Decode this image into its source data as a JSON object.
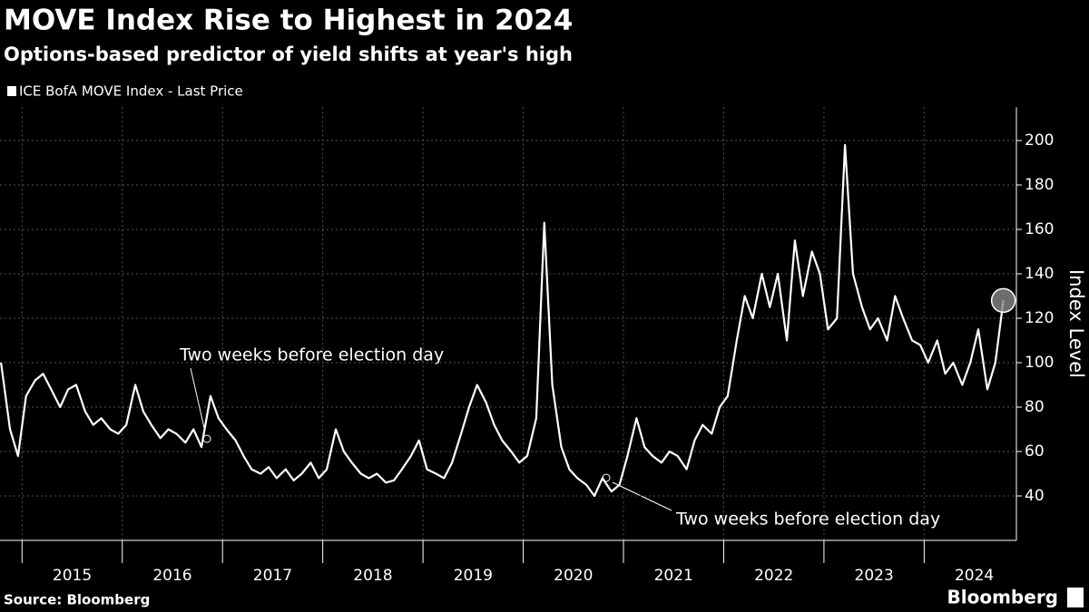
{
  "chart_data": {
    "type": "line",
    "title": "MOVE Index Rise to Highest in 2024",
    "subtitle": "Options-based predictor of yield shifts at year's high",
    "y_axis_label": "Index Level",
    "source": "Source: Bloomberg",
    "brand": "Bloomberg",
    "annotations": [
      {
        "text": "Two weeks before election day"
      },
      {
        "text": "Two weeks before election day"
      }
    ],
    "x": [
      2014.79,
      2014.88,
      2014.96,
      2015.04,
      2015.13,
      2015.21,
      2015.29,
      2015.38,
      2015.46,
      2015.54,
      2015.63,
      2015.71,
      2015.79,
      2015.88,
      2015.96,
      2016.04,
      2016.13,
      2016.21,
      2016.29,
      2016.38,
      2016.46,
      2016.54,
      2016.63,
      2016.71,
      2016.79,
      2016.88,
      2016.96,
      2017.04,
      2017.13,
      2017.21,
      2017.29,
      2017.38,
      2017.46,
      2017.54,
      2017.63,
      2017.71,
      2017.79,
      2017.88,
      2017.96,
      2018.04,
      2018.13,
      2018.21,
      2018.29,
      2018.38,
      2018.46,
      2018.54,
      2018.63,
      2018.71,
      2018.79,
      2018.88,
      2018.96,
      2019.04,
      2019.13,
      2019.21,
      2019.29,
      2019.38,
      2019.46,
      2019.54,
      2019.63,
      2019.71,
      2019.79,
      2019.88,
      2019.96,
      2020.04,
      2020.13,
      2020.21,
      2020.29,
      2020.38,
      2020.46,
      2020.54,
      2020.63,
      2020.71,
      2020.79,
      2020.88,
      2020.96,
      2021.04,
      2021.13,
      2021.21,
      2021.29,
      2021.38,
      2021.46,
      2021.54,
      2021.63,
      2021.71,
      2021.79,
      2021.88,
      2021.96,
      2022.04,
      2022.13,
      2022.21,
      2022.29,
      2022.38,
      2022.46,
      2022.54,
      2022.63,
      2022.71,
      2022.79,
      2022.88,
      2022.96,
      2023.04,
      2023.13,
      2023.21,
      2023.29,
      2023.38,
      2023.46,
      2023.54,
      2023.63,
      2023.71,
      2023.79,
      2023.88,
      2023.96,
      2024.04,
      2024.13,
      2024.21,
      2024.29,
      2024.38,
      2024.46,
      2024.54,
      2024.63,
      2024.71,
      2024.79
    ],
    "series": [
      {
        "name": "ICE BofA MOVE Index - Last Price",
        "color": "#ffffff",
        "values": [
          100,
          70,
          58,
          85,
          92,
          95,
          88,
          80,
          88,
          90,
          78,
          72,
          75,
          70,
          68,
          72,
          90,
          78,
          72,
          66,
          70,
          68,
          64,
          70,
          62,
          85,
          75,
          70,
          65,
          58,
          52,
          50,
          53,
          48,
          52,
          47,
          50,
          55,
          48,
          52,
          70,
          60,
          55,
          50,
          48,
          50,
          46,
          47,
          52,
          58,
          65,
          52,
          50,
          48,
          55,
          68,
          80,
          90,
          82,
          72,
          65,
          60,
          55,
          58,
          75,
          163,
          90,
          62,
          52,
          48,
          45,
          40,
          48,
          42,
          45,
          58,
          75,
          62,
          58,
          55,
          60,
          58,
          52,
          65,
          72,
          68,
          80,
          85,
          110,
          130,
          120,
          140,
          125,
          140,
          110,
          155,
          130,
          150,
          140,
          115,
          120,
          198,
          140,
          125,
          115,
          120,
          110,
          130,
          120,
          110,
          108,
          100,
          110,
          95,
          100,
          90,
          100,
          115,
          88,
          100,
          128
        ]
      }
    ],
    "xlim": [
      2014.78,
      2024.92
    ],
    "xticks": [
      2015,
      2016,
      2017,
      2018,
      2019,
      2020,
      2021,
      2022,
      2023,
      2024
    ],
    "ylim": [
      20,
      215
    ],
    "yticks": [
      40,
      60,
      80,
      100,
      120,
      140,
      160,
      180,
      200
    ],
    "grid": true
  }
}
